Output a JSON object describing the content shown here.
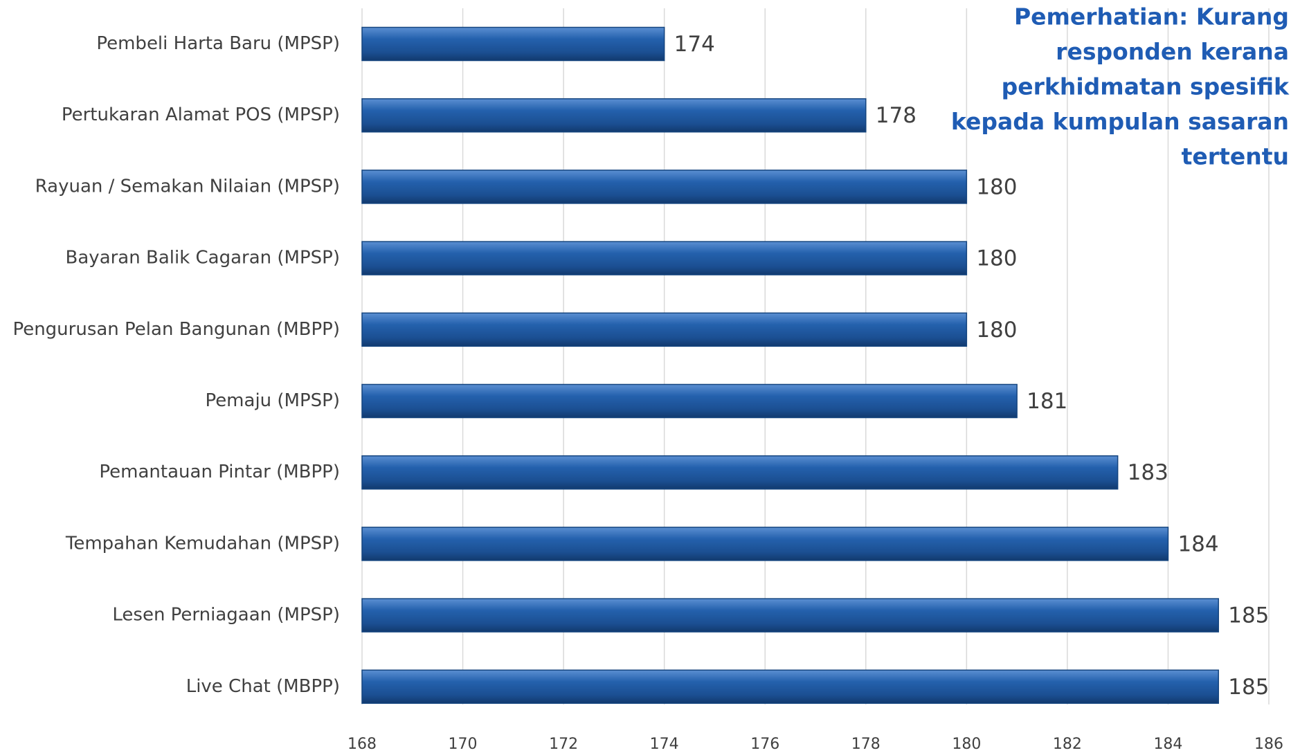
{
  "chart_data": {
    "type": "bar",
    "orientation": "horizontal",
    "categories": [
      "Pembeli Harta Baru (MPSP)",
      "Pertukaran Alamat POS (MPSP)",
      "Rayuan / Semakan Nilaian (MPSP)",
      "Bayaran Balik Cagaran (MPSP)",
      "Pengurusan Pelan Bangunan (MBPP)",
      "Pemaju (MPSP)",
      "Pemantauan Pintar (MBPP)",
      "Tempahan Kemudahan (MPSP)",
      "Lesen Perniagaan (MPSP)",
      "Live Chat (MBPP)"
    ],
    "values": [
      174,
      178,
      180,
      180,
      180,
      181,
      183,
      184,
      185,
      185
    ],
    "color": "#1f5aa3",
    "xlim": [
      168,
      186
    ],
    "xticks": [
      168,
      170,
      172,
      174,
      176,
      178,
      180,
      182,
      184,
      186
    ],
    "grid": true,
    "annotation": [
      "Pemerhatian: Kurang",
      "responden kerana",
      "perkhidmatan spesifik",
      "kepada kumpulan sasaran",
      "tertentu"
    ]
  }
}
